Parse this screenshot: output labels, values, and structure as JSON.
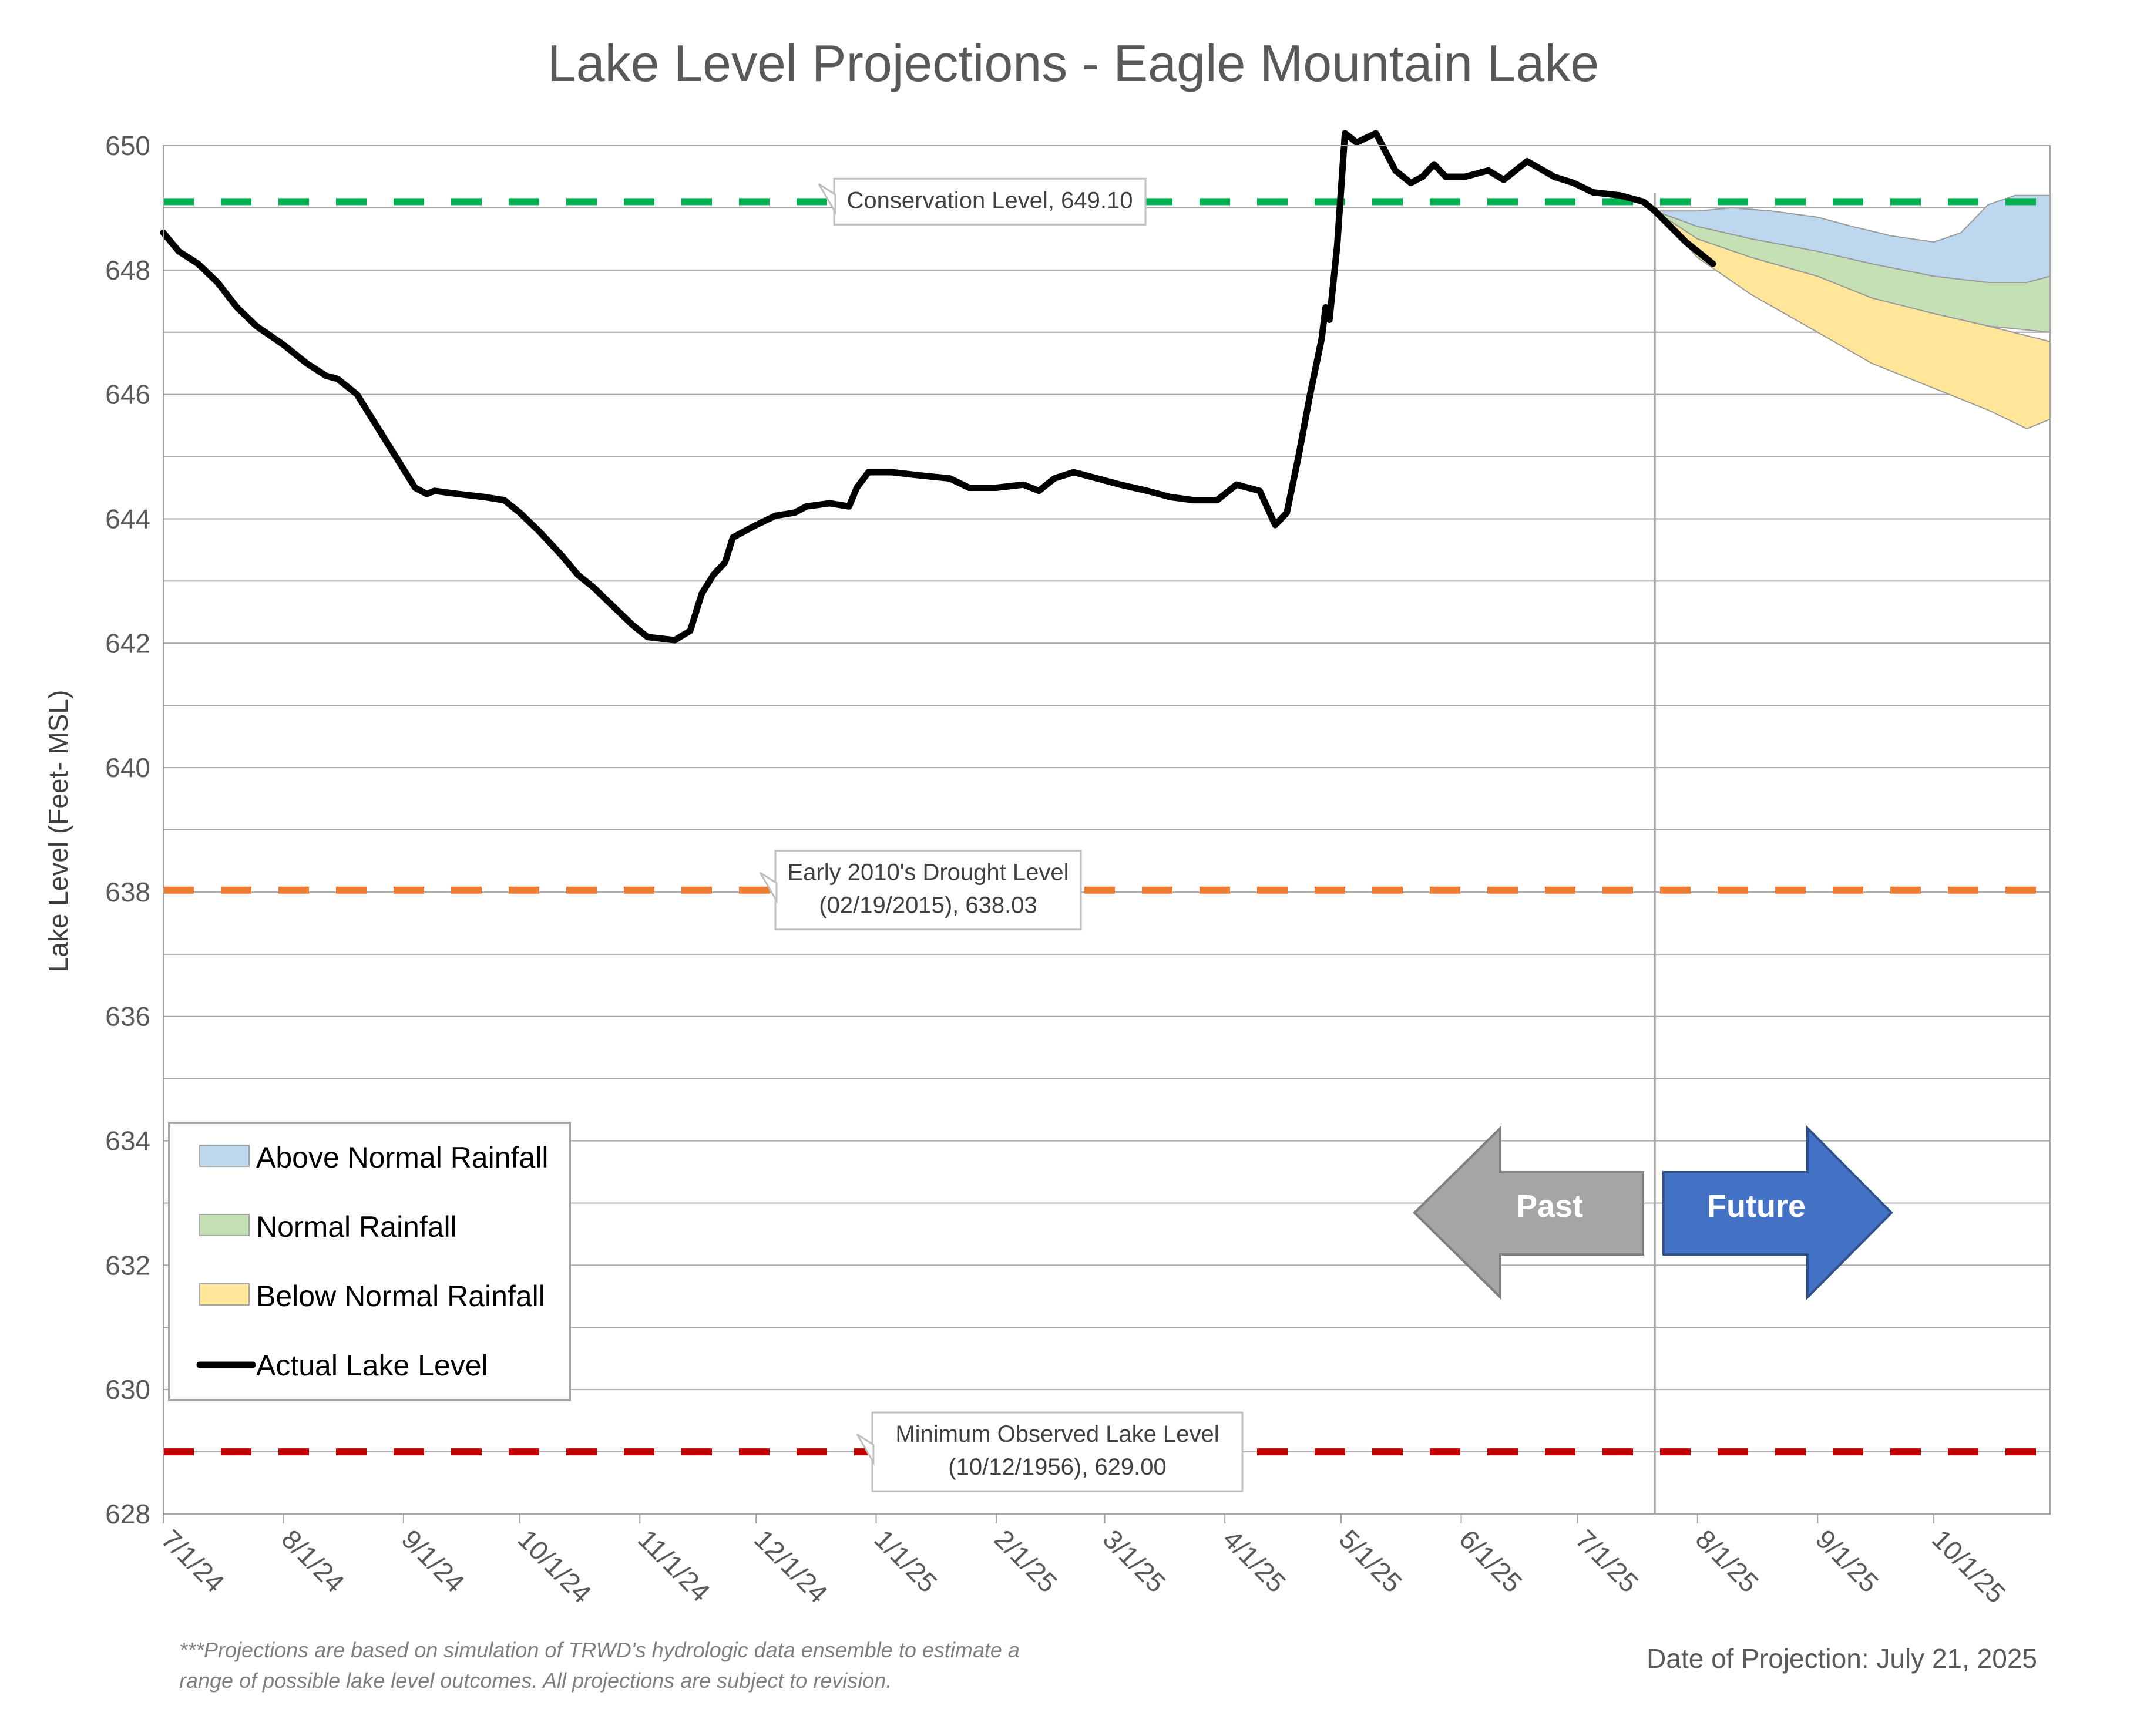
{
  "chart_data": {
    "type": "line",
    "title": "Lake Level Projections - Eagle Mountain Lake",
    "ylabel": "Lake Level (Feet- MSL)",
    "xlabel": "",
    "ylim": [
      628,
      650
    ],
    "yticks": [
      628,
      630,
      632,
      634,
      636,
      638,
      640,
      642,
      644,
      646,
      648,
      650
    ],
    "xlim": [
      "2024-07-01",
      "2025-10-31"
    ],
    "xticks": [
      {
        "date": "2024-07-01",
        "label": "7/1/24"
      },
      {
        "date": "2024-08-01",
        "label": "8/1/24"
      },
      {
        "date": "2024-09-01",
        "label": "9/1/24"
      },
      {
        "date": "2024-10-01",
        "label": "10/1/24"
      },
      {
        "date": "2024-11-01",
        "label": "11/1/24"
      },
      {
        "date": "2024-12-01",
        "label": "12/1/24"
      },
      {
        "date": "2025-01-01",
        "label": "1/1/25"
      },
      {
        "date": "2025-02-01",
        "label": "2/1/25"
      },
      {
        "date": "2025-03-01",
        "label": "3/1/25"
      },
      {
        "date": "2025-04-01",
        "label": "4/1/25"
      },
      {
        "date": "2025-05-01",
        "label": "5/1/25"
      },
      {
        "date": "2025-06-01",
        "label": "6/1/25"
      },
      {
        "date": "2025-07-01",
        "label": "7/1/25"
      },
      {
        "date": "2025-08-01",
        "label": "8/1/25"
      },
      {
        "date": "2025-09-01",
        "label": "9/1/25"
      },
      {
        "date": "2025-10-01",
        "label": "10/1/25"
      }
    ],
    "grid": true,
    "projection_date": "2025-07-21",
    "reference_lines": [
      {
        "name": "Conservation Level",
        "value": 649.1,
        "color": "#00b050",
        "label_lines": [
          "Conservation Level, 649.10"
        ]
      },
      {
        "name": "Early 2010's Drought Level",
        "value": 638.03,
        "color": "#ed7d31",
        "label_lines": [
          "Early 2010's Drought Level",
          "(02/19/2015), 638.03"
        ]
      },
      {
        "name": "Minimum Observed Lake Level",
        "value": 629.0,
        "color": "#c00000",
        "label_lines": [
          "Minimum Observed Lake Level",
          "(10/12/1956), 629.00"
        ]
      }
    ],
    "series": [
      {
        "name": "Actual Lake Level",
        "type": "line",
        "color": "#000000",
        "points": [
          [
            "2024-07-01",
            648.6
          ],
          [
            "2024-07-05",
            648.3
          ],
          [
            "2024-07-10",
            648.1
          ],
          [
            "2024-07-15",
            647.8
          ],
          [
            "2024-07-20",
            647.4
          ],
          [
            "2024-07-25",
            647.1
          ],
          [
            "2024-08-01",
            646.8
          ],
          [
            "2024-08-07",
            646.5
          ],
          [
            "2024-08-12",
            646.3
          ],
          [
            "2024-08-15",
            646.25
          ],
          [
            "2024-08-20",
            646.0
          ],
          [
            "2024-08-25",
            645.5
          ],
          [
            "2024-08-30",
            645.0
          ],
          [
            "2024-09-04",
            644.5
          ],
          [
            "2024-09-07",
            644.4
          ],
          [
            "2024-09-09",
            644.45
          ],
          [
            "2024-09-15",
            644.4
          ],
          [
            "2024-09-22",
            644.35
          ],
          [
            "2024-09-27",
            644.3
          ],
          [
            "2024-10-01",
            644.1
          ],
          [
            "2024-10-06",
            643.8
          ],
          [
            "2024-10-12",
            643.4
          ],
          [
            "2024-10-16",
            643.1
          ],
          [
            "2024-10-20",
            642.9
          ],
          [
            "2024-10-25",
            642.6
          ],
          [
            "2024-10-30",
            642.3
          ],
          [
            "2024-11-03",
            642.1
          ],
          [
            "2024-11-10",
            642.05
          ],
          [
            "2024-11-14",
            642.2
          ],
          [
            "2024-11-17",
            642.8
          ],
          [
            "2024-11-20",
            643.1
          ],
          [
            "2024-11-23",
            643.3
          ],
          [
            "2024-11-25",
            643.7
          ],
          [
            "2024-11-28",
            643.8
          ],
          [
            "2024-12-01",
            643.9
          ],
          [
            "2024-12-06",
            644.05
          ],
          [
            "2024-12-11",
            644.1
          ],
          [
            "2024-12-14",
            644.2
          ],
          [
            "2024-12-20",
            644.25
          ],
          [
            "2024-12-25",
            644.2
          ],
          [
            "2024-12-27",
            644.5
          ],
          [
            "2024-12-30",
            644.75
          ],
          [
            "2025-01-05",
            644.75
          ],
          [
            "2025-01-12",
            644.7
          ],
          [
            "2025-01-20",
            644.65
          ],
          [
            "2025-01-25",
            644.5
          ],
          [
            "2025-02-01",
            644.5
          ],
          [
            "2025-02-08",
            644.55
          ],
          [
            "2025-02-12",
            644.45
          ],
          [
            "2025-02-16",
            644.65
          ],
          [
            "2025-02-21",
            644.75
          ],
          [
            "2025-02-27",
            644.65
          ],
          [
            "2025-03-05",
            644.55
          ],
          [
            "2025-03-12",
            644.45
          ],
          [
            "2025-03-18",
            644.35
          ],
          [
            "2025-03-24",
            644.3
          ],
          [
            "2025-03-30",
            644.3
          ],
          [
            "2025-04-04",
            644.55
          ],
          [
            "2025-04-10",
            644.45
          ],
          [
            "2025-04-14",
            643.9
          ],
          [
            "2025-04-17",
            644.1
          ],
          [
            "2025-04-20",
            645.0
          ],
          [
            "2025-04-23",
            646.0
          ],
          [
            "2025-04-26",
            646.9
          ],
          [
            "2025-04-27",
            647.4
          ],
          [
            "2025-04-28",
            647.2
          ],
          [
            "2025-04-30",
            648.4
          ],
          [
            "2025-05-02",
            650.2
          ],
          [
            "2025-05-05",
            650.05
          ],
          [
            "2025-05-10",
            650.2
          ],
          [
            "2025-05-15",
            649.6
          ],
          [
            "2025-05-19",
            649.4
          ],
          [
            "2025-05-22",
            649.5
          ],
          [
            "2025-05-25",
            649.7
          ],
          [
            "2025-05-28",
            649.5
          ],
          [
            "2025-06-02",
            649.5
          ],
          [
            "2025-06-08",
            649.6
          ],
          [
            "2025-06-12",
            649.45
          ],
          [
            "2025-06-18",
            649.75
          ],
          [
            "2025-06-25",
            649.5
          ],
          [
            "2025-06-30",
            649.4
          ],
          [
            "2025-07-05",
            649.25
          ],
          [
            "2025-07-12",
            649.2
          ],
          [
            "2025-07-18",
            649.1
          ],
          [
            "2025-07-21",
            648.95
          ],
          [
            "2025-07-25",
            648.7
          ],
          [
            "2025-07-29",
            648.45
          ],
          [
            "2025-08-02",
            648.25
          ],
          [
            "2025-08-05",
            648.1
          ]
        ]
      }
    ],
    "bands": [
      {
        "name": "Above Normal Rainfall",
        "color": "#bdd7ee",
        "upper": [
          [
            "2025-07-21",
            648.95
          ],
          [
            "2025-08-01",
            648.95
          ],
          [
            "2025-08-10",
            649.0
          ],
          [
            "2025-08-20",
            648.95
          ],
          [
            "2025-09-01",
            648.85
          ],
          [
            "2025-09-10",
            648.7
          ],
          [
            "2025-09-20",
            648.55
          ],
          [
            "2025-10-01",
            648.45
          ],
          [
            "2025-10-08",
            648.6
          ],
          [
            "2025-10-15",
            649.05
          ],
          [
            "2025-10-22",
            649.2
          ],
          [
            "2025-10-31",
            649.2
          ]
        ],
        "lower": [
          [
            "2025-07-21",
            648.95
          ],
          [
            "2025-08-01",
            648.7
          ],
          [
            "2025-08-15",
            648.5
          ],
          [
            "2025-09-01",
            648.3
          ],
          [
            "2025-09-15",
            648.1
          ],
          [
            "2025-10-01",
            647.9
          ],
          [
            "2025-10-15",
            647.8
          ],
          [
            "2025-10-25",
            647.8
          ],
          [
            "2025-10-31",
            647.9
          ]
        ]
      },
      {
        "name": "Normal Rainfall",
        "color": "#c5e0b4",
        "upper": [
          [
            "2025-07-21",
            648.95
          ],
          [
            "2025-08-01",
            648.7
          ],
          [
            "2025-08-15",
            648.5
          ],
          [
            "2025-09-01",
            648.3
          ],
          [
            "2025-09-15",
            648.1
          ],
          [
            "2025-10-01",
            647.9
          ],
          [
            "2025-10-15",
            647.8
          ],
          [
            "2025-10-25",
            647.8
          ],
          [
            "2025-10-31",
            647.9
          ]
        ],
        "lower": [
          [
            "2025-07-21",
            648.95
          ],
          [
            "2025-08-01",
            648.5
          ],
          [
            "2025-08-15",
            648.2
          ],
          [
            "2025-09-01",
            647.9
          ],
          [
            "2025-09-15",
            647.55
          ],
          [
            "2025-10-01",
            647.3
          ],
          [
            "2025-10-15",
            647.1
          ],
          [
            "2025-10-31",
            647.0
          ]
        ]
      },
      {
        "name": "Below Normal Rainfall",
        "color": "#ffe699",
        "upper": [
          [
            "2025-07-21",
            648.95
          ],
          [
            "2025-08-01",
            648.5
          ],
          [
            "2025-08-15",
            648.2
          ],
          [
            "2025-09-01",
            647.9
          ],
          [
            "2025-09-15",
            647.55
          ],
          [
            "2025-10-01",
            647.3
          ],
          [
            "2025-10-15",
            647.1
          ],
          [
            "2025-10-31",
            646.85
          ]
        ],
        "lower": [
          [
            "2025-07-21",
            648.95
          ],
          [
            "2025-08-01",
            648.2
          ],
          [
            "2025-08-15",
            647.6
          ],
          [
            "2025-09-01",
            647.0
          ],
          [
            "2025-09-15",
            646.5
          ],
          [
            "2025-10-01",
            646.1
          ],
          [
            "2025-10-15",
            645.75
          ],
          [
            "2025-10-25",
            645.45
          ],
          [
            "2025-10-31",
            645.6
          ]
        ]
      }
    ],
    "legend": {
      "placement": "bottom-left",
      "items": [
        {
          "label": "Above Normal Rainfall",
          "kind": "swatch",
          "color": "#bdd7ee"
        },
        {
          "label": "Normal Rainfall",
          "kind": "swatch",
          "color": "#c5e0b4"
        },
        {
          "label": "Below Normal Rainfall",
          "kind": "swatch",
          "color": "#ffe699"
        },
        {
          "label": "Actual Lake Level",
          "kind": "line",
          "color": "#000000"
        }
      ]
    },
    "annotations": {
      "past_label": "Past",
      "future_label": "Future",
      "past_color": "#a5a5a5",
      "future_color": "#4472c4",
      "footnote_lines": [
        "***Projections are based on simulation of TRWD's hydrologic data ensemble to estimate a",
        "range of possible lake level outcomes.  All projections are subject to revision."
      ],
      "projection_text": "Date of Projection: July 21, 2025"
    }
  }
}
